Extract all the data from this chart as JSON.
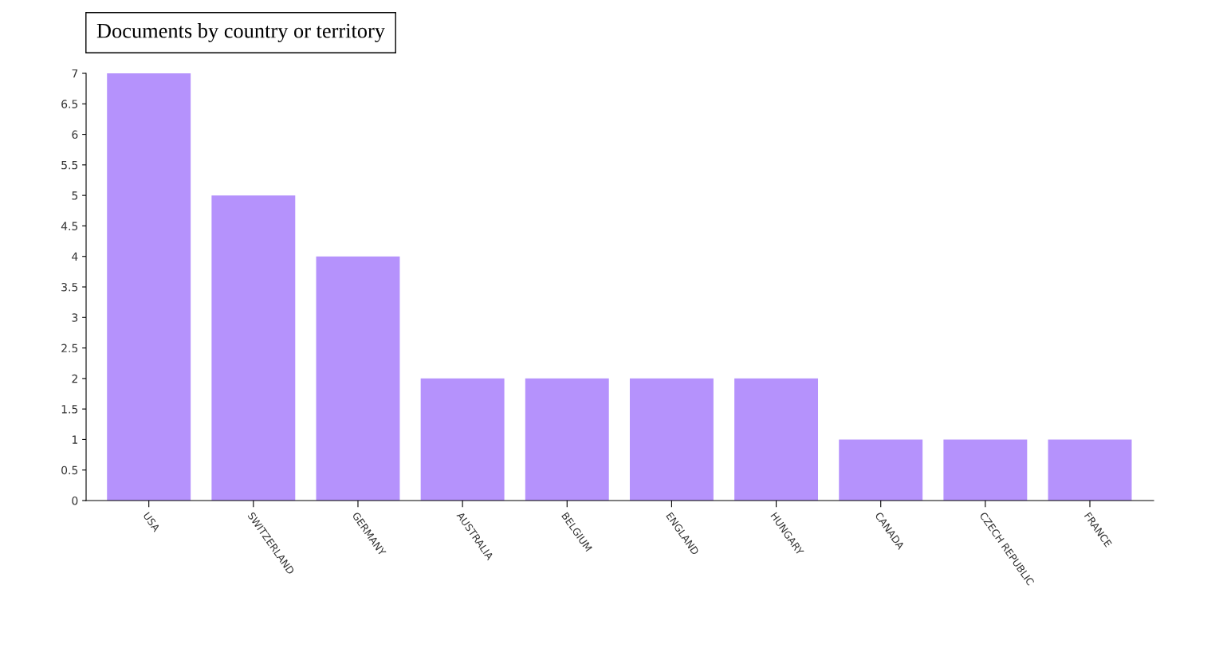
{
  "chart_data": {
    "type": "bar",
    "title": "Documents by country or territory",
    "categories": [
      "USA",
      "SWITZERLAND",
      "GERMANY",
      "AUSTRALIA",
      "BELGIUM",
      "ENGLAND",
      "HUNGARY",
      "CANADA",
      "CZECH REPUBLIC",
      "FRANCE"
    ],
    "values": [
      7,
      5,
      4,
      2,
      2,
      2,
      2,
      1,
      1,
      1
    ],
    "color": "#b592fc",
    "ylim": [
      0,
      7
    ],
    "yticks": [
      0,
      0.5,
      1,
      1.5,
      2,
      2.5,
      3,
      3.5,
      4,
      4.5,
      5,
      5.5,
      6,
      6.5,
      7
    ],
    "grid": false,
    "legend": false
  }
}
